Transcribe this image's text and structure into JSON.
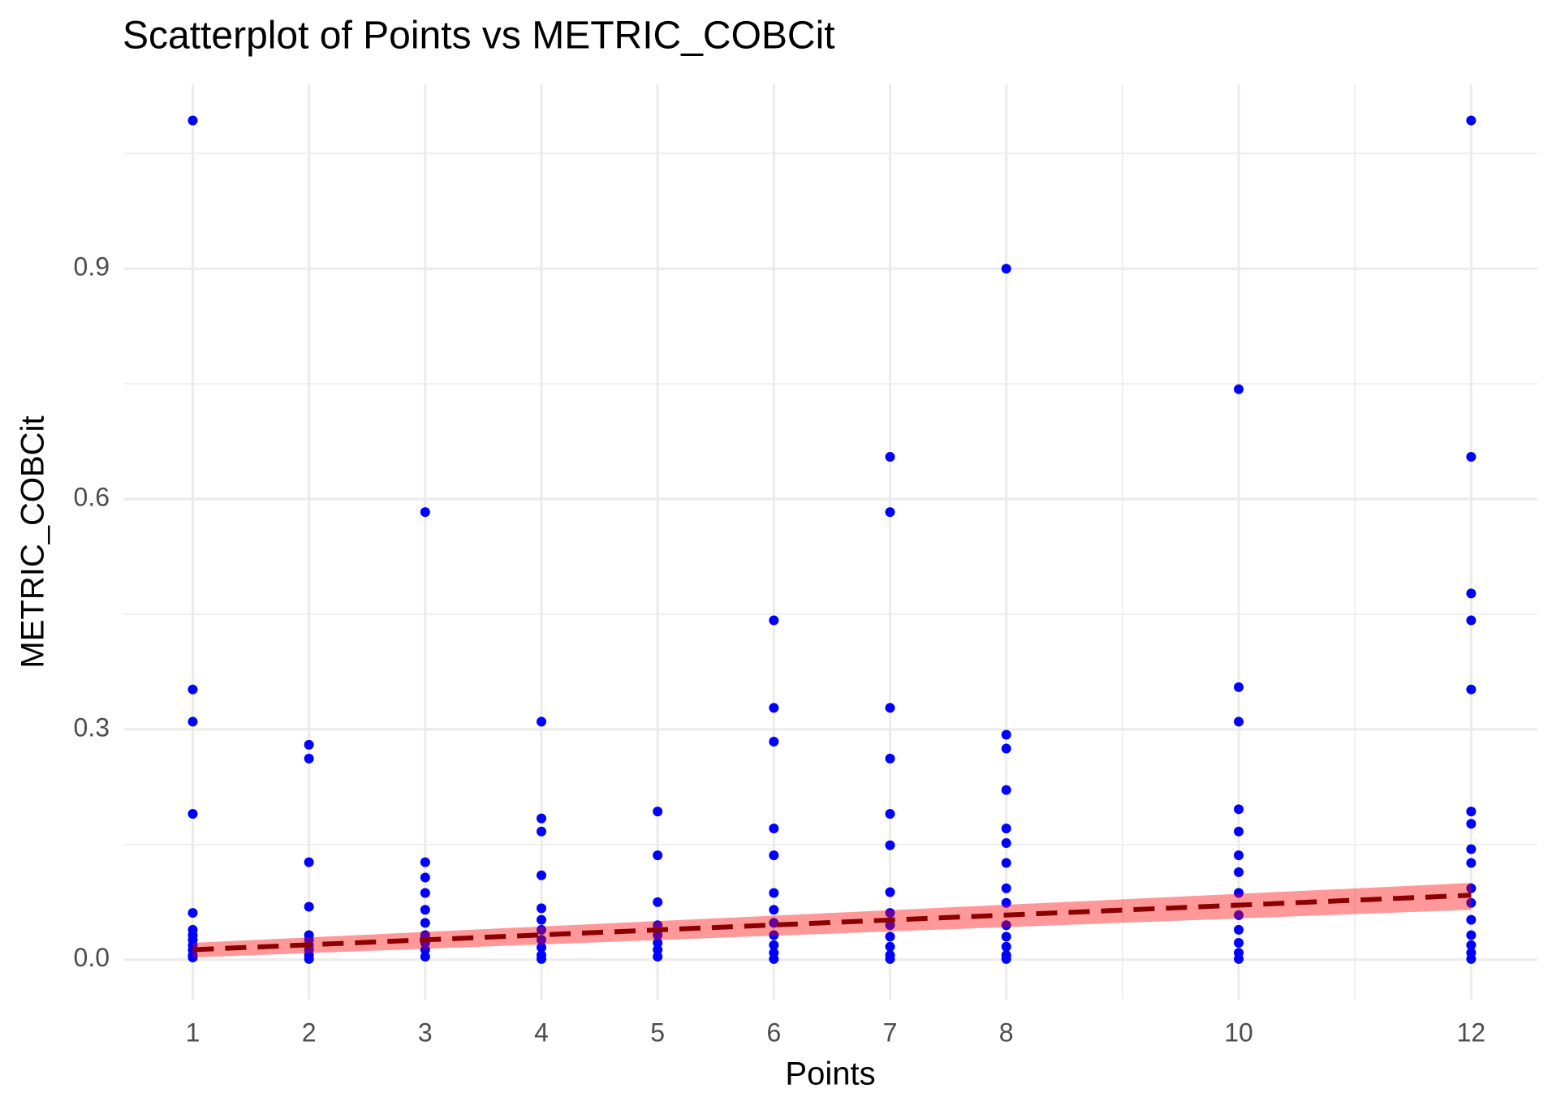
{
  "chart_data": {
    "type": "scatter",
    "title": "Scatterplot of Points vs  METRIC_COBCit",
    "x_label": "Points",
    "y_label": "METRIC_COBCit",
    "color": "#0000ff",
    "x": [
      1,
      1,
      1,
      1,
      1,
      1,
      1,
      1,
      1,
      1,
      1,
      1,
      2,
      2,
      2,
      2,
      2,
      2,
      2,
      2,
      2,
      2,
      3,
      3,
      3,
      3,
      3,
      3,
      3,
      3,
      3,
      3,
      4,
      4,
      4,
      4,
      4,
      4,
      4,
      4,
      4,
      4,
      4,
      5,
      5,
      5,
      5,
      5,
      5,
      5,
      5,
      6,
      6,
      6,
      6,
      6,
      6,
      6,
      6,
      6,
      6,
      6,
      6,
      7,
      7,
      7,
      7,
      7,
      7,
      7,
      7,
      7,
      7,
      7,
      7,
      7,
      8,
      8,
      8,
      8,
      8,
      8,
      8,
      8,
      8,
      8,
      8,
      8,
      8,
      8,
      10,
      10,
      10,
      10,
      10,
      10,
      10,
      10,
      10,
      10,
      10,
      10,
      10,
      12,
      12,
      12,
      12,
      12,
      12,
      12,
      12,
      12,
      12,
      12,
      12,
      12,
      12,
      12,
      12
    ],
    "values": [
      1.093,
      0.352,
      0.31,
      0.19,
      0.061,
      0.039,
      0.032,
      0.026,
      0.019,
      0.013,
      0.006,
      0.003,
      0.28,
      0.262,
      0.127,
      0.069,
      0.032,
      0.026,
      0.019,
      0.013,
      0.006,
      0.001,
      0.583,
      0.127,
      0.107,
      0.087,
      0.065,
      0.048,
      0.032,
      0.022,
      0.013,
      0.004,
      0.31,
      0.184,
      0.167,
      0.11,
      0.067,
      0.052,
      0.039,
      0.026,
      0.016,
      0.006,
      0.001,
      0.193,
      0.136,
      0.075,
      0.045,
      0.032,
      0.022,
      0.013,
      0.004,
      0.442,
      0.328,
      0.284,
      0.171,
      0.136,
      0.087,
      0.065,
      0.048,
      0.032,
      0.019,
      0.009,
      0.001,
      0.655,
      0.583,
      0.328,
      0.262,
      0.19,
      0.149,
      0.088,
      0.061,
      0.045,
      0.03,
      0.017,
      0.006,
      0.001,
      0.9,
      0.293,
      0.275,
      0.221,
      0.171,
      0.152,
      0.126,
      0.093,
      0.074,
      0.045,
      0.03,
      0.017,
      0.006,
      0.001,
      0.743,
      0.355,
      0.31,
      0.196,
      0.167,
      0.136,
      0.114,
      0.087,
      0.058,
      0.039,
      0.022,
      0.009,
      0.001,
      1.093,
      0.655,
      0.477,
      0.442,
      0.352,
      0.193,
      0.177,
      0.144,
      0.126,
      0.093,
      0.074,
      0.052,
      0.032,
      0.019,
      0.009,
      0.001
    ],
    "fit": {
      "color": "#8b0000",
      "band_color": "#ff0000",
      "x": [
        1,
        12
      ],
      "y": [
        0.013,
        0.084
      ],
      "lower": [
        0.003,
        0.065
      ],
      "upper": [
        0.022,
        0.1
      ]
    },
    "xlim": [
      0.41,
      12.57
    ],
    "ylim": [
      -0.052,
      1.14
    ],
    "xticks": [
      1,
      2,
      3,
      4,
      5,
      6,
      7,
      8,
      10,
      12
    ],
    "yticks": [
      {
        "value": 0,
        "label": "0.0"
      },
      0.3,
      0.6,
      0.9
    ],
    "x_minor_grid": [
      9,
      11
    ],
    "y_minor_grid": [
      0.15,
      0.45,
      0.75,
      1.05
    ],
    "grid": true
  }
}
